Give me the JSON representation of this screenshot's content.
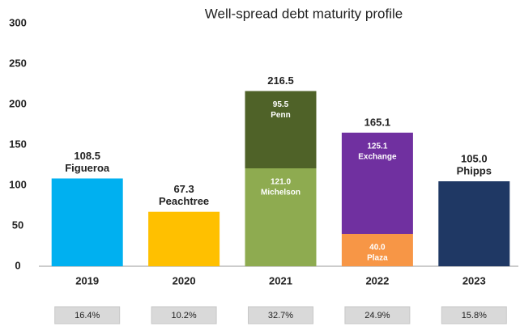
{
  "chart_data": {
    "type": "bar",
    "stacked": true,
    "title": "Well-spread debt maturity profile",
    "categories": [
      "2019",
      "2020",
      "2021",
      "2022",
      "2023"
    ],
    "series": [
      {
        "name": "Figueroa",
        "color": "#00b0f0",
        "values": [
          108.5,
          null,
          null,
          null,
          null
        ]
      },
      {
        "name": "Peachtree",
        "color": "#ffc000",
        "values": [
          null,
          67.3,
          null,
          null,
          null
        ]
      },
      {
        "name": "Michelson",
        "color": "#8eab50",
        "values": [
          null,
          null,
          121.0,
          null,
          null
        ],
        "value_labels": [
          null,
          null,
          "121.0",
          null,
          null
        ]
      },
      {
        "name": "Penn",
        "color": "#4f6228",
        "values": [
          null,
          null,
          95.5,
          null,
          null
        ]
      },
      {
        "name": "Plaza",
        "color": "#f79646",
        "values": [
          null,
          null,
          null,
          40.0,
          null
        ],
        "value_labels": [
          null,
          null,
          null,
          "40.0",
          null
        ]
      },
      {
        "name": "Exchange",
        "color": "#7030a0",
        "values": [
          null,
          null,
          null,
          125.1,
          null
        ]
      },
      {
        "name": "Phipps",
        "color": "#1f3864",
        "values": [
          null,
          null,
          null,
          null,
          105.0
        ],
        "value_labels": [
          null,
          null,
          null,
          null,
          "105.0"
        ]
      }
    ],
    "totals": [
      null,
      null,
      216.5,
      165.1,
      null
    ],
    "shares": {
      "values": [
        16.4,
        10.2,
        32.7,
        24.9,
        15.8
      ],
      "value_labels": [
        "16.4%",
        "10.2%",
        "32.7%",
        "24.9%",
        "15.8%"
      ]
    },
    "ylim": [
      0,
      300
    ],
    "yticks": [
      0,
      50,
      100,
      150,
      200,
      250,
      300
    ],
    "grid": false
  }
}
